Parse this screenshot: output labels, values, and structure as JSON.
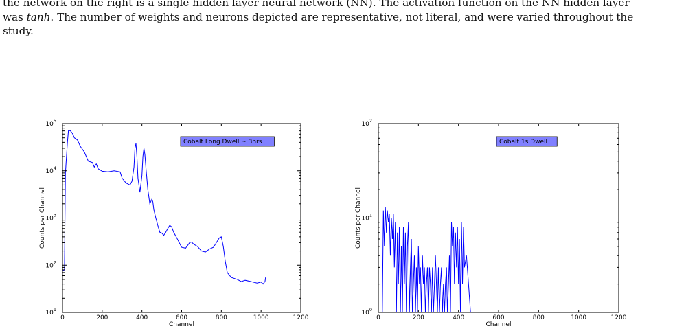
{
  "caption": {
    "line1": "the network on the right is a single hidden layer neural network (NN). The activation function on the NN hidden layer",
    "line2_pre": "was ",
    "line2_em": "tanh",
    "line2_post": ". The number of weights and neurons depicted are representative, not literal, and were varied throughout the",
    "line3": "study."
  },
  "colors": {
    "line": "#0000ff",
    "legend_fill": "#8080ff"
  },
  "chart_data": [
    {
      "type": "line",
      "title": "",
      "legend_label": "Cobalt Long Dwell ~ 3hrs",
      "legend_position": "top-right",
      "xlabel": "Channel",
      "ylabel": "Counts per Channel",
      "xlim": [
        0,
        1200
      ],
      "ylim": [
        10,
        100000
      ],
      "yscale": "log",
      "grid": false,
      "xticks": [
        "0",
        "200",
        "400",
        "600",
        "800",
        "1000",
        "1200"
      ],
      "yticks": [
        {
          "base": "10",
          "exp": "1"
        },
        {
          "base": "10",
          "exp": "2"
        },
        {
          "base": "10",
          "exp": "3"
        },
        {
          "base": "10",
          "exp": "4"
        },
        {
          "base": "10",
          "exp": "5"
        }
      ],
      "x": [
        0,
        10,
        15,
        20,
        25,
        30,
        40,
        50,
        60,
        75,
        90,
        110,
        120,
        130,
        150,
        160,
        170,
        180,
        200,
        230,
        260,
        290,
        300,
        320,
        340,
        350,
        360,
        365,
        370,
        375,
        380,
        390,
        400,
        405,
        410,
        415,
        420,
        430,
        440,
        450,
        455,
        460,
        470,
        480,
        490,
        500,
        510,
        520,
        530,
        540,
        550,
        560,
        580,
        600,
        620,
        640,
        650,
        660,
        680,
        700,
        720,
        740,
        760,
        775,
        790,
        800,
        810,
        820,
        830,
        850,
        880,
        900,
        920,
        950,
        980,
        1000,
        1010,
        1020,
        1023
      ],
      "y": [
        75,
        80,
        9000,
        20000,
        40000,
        72000,
        70000,
        62000,
        50000,
        45000,
        33000,
        25000,
        20000,
        16000,
        15000,
        12000,
        14000,
        11000,
        9800,
        9500,
        10000,
        9500,
        7000,
        5500,
        5000,
        6000,
        12000,
        30000,
        38000,
        20000,
        7000,
        3500,
        8000,
        20000,
        30000,
        22000,
        12000,
        4000,
        2000,
        2500,
        2200,
        1500,
        1000,
        700,
        500,
        480,
        430,
        500,
        600,
        700,
        650,
        500,
        350,
        240,
        230,
        300,
        310,
        280,
        250,
        200,
        190,
        220,
        240,
        300,
        380,
        400,
        250,
        120,
        70,
        55,
        50,
        45,
        48,
        45,
        42,
        44,
        40,
        45,
        55
      ]
    },
    {
      "type": "line",
      "title": "",
      "legend_label": "Cobalt 1s Dwell",
      "legend_position": "top-right",
      "xlabel": "Channel",
      "ylabel": "Counts per Channel",
      "xlim": [
        0,
        1200
      ],
      "ylim": [
        1,
        100
      ],
      "yscale": "log",
      "grid": false,
      "xticks": [
        "0",
        "200",
        "400",
        "600",
        "800",
        "1000",
        "1200"
      ],
      "yticks": [
        {
          "base": "10",
          "exp": "0"
        },
        {
          "base": "10",
          "exp": "1"
        },
        {
          "base": "10",
          "exp": "2"
        }
      ],
      "x": [
        20,
        25,
        30,
        35,
        40,
        45,
        50,
        55,
        60,
        65,
        70,
        75,
        80,
        85,
        90,
        95,
        100,
        105,
        110,
        115,
        120,
        125,
        130,
        135,
        140,
        145,
        150,
        155,
        160,
        165,
        170,
        175,
        180,
        185,
        190,
        195,
        200,
        205,
        210,
        215,
        220,
        225,
        230,
        235,
        240,
        245,
        250,
        255,
        260,
        265,
        270,
        275,
        280,
        285,
        290,
        295,
        300,
        305,
        310,
        315,
        320,
        325,
        330,
        335,
        340,
        345,
        350,
        355,
        360,
        365,
        370,
        375,
        380,
        385,
        390,
        395,
        400,
        405,
        410,
        415,
        420,
        425,
        430,
        440,
        450,
        460
      ],
      "y": [
        1,
        12,
        5,
        13,
        7,
        12,
        9,
        11,
        4,
        10,
        6,
        11,
        3,
        9,
        1,
        7,
        2,
        8,
        1,
        5,
        1,
        8,
        2,
        7,
        1,
        5,
        9,
        1,
        3,
        6,
        1,
        2,
        4,
        1,
        3,
        1,
        5,
        2,
        3,
        1,
        4,
        2,
        3,
        1,
        2,
        3,
        1,
        3,
        2,
        1,
        3,
        1,
        2,
        4,
        2,
        1,
        3,
        1,
        2,
        3,
        1,
        2,
        1,
        2,
        3,
        1,
        2,
        4,
        1,
        9,
        5,
        8,
        2,
        7,
        3,
        8,
        2,
        6,
        1,
        9,
        2,
        8,
        3,
        4,
        2,
        1
      ]
    }
  ]
}
